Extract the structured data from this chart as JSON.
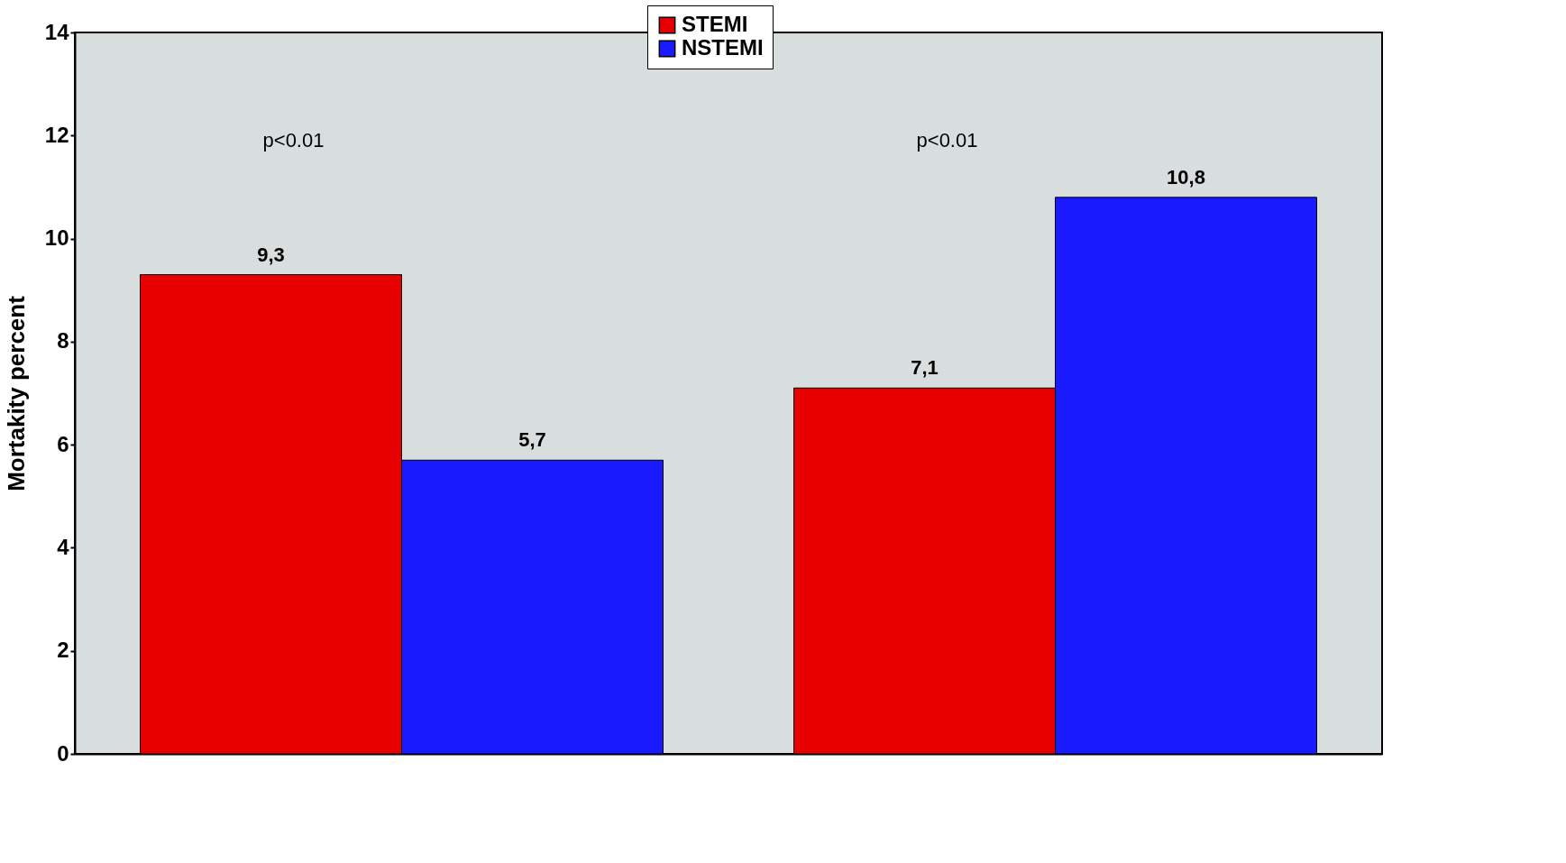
{
  "chart_data": {
    "type": "bar",
    "ylabel": "Mortakity percent",
    "categories": [
      null,
      null
    ],
    "series": [
      {
        "name": "STEMI",
        "color": "#e60000",
        "values": [
          9.3,
          7.1
        ],
        "value_labels": [
          "9,3",
          "7,1"
        ]
      },
      {
        "name": "NSTEMI",
        "color": "#1a1aff",
        "values": [
          5.7,
          10.8
        ],
        "value_labels": [
          "5,7",
          "10,8"
        ]
      }
    ],
    "annotations": [
      "p<0.01",
      "p<0.01"
    ],
    "ylim": [
      0,
      14
    ],
    "yticks": [
      0,
      2,
      4,
      6,
      8,
      10,
      12,
      14
    ],
    "grid": false,
    "legend": "top",
    "tick_labels": "y"
  }
}
